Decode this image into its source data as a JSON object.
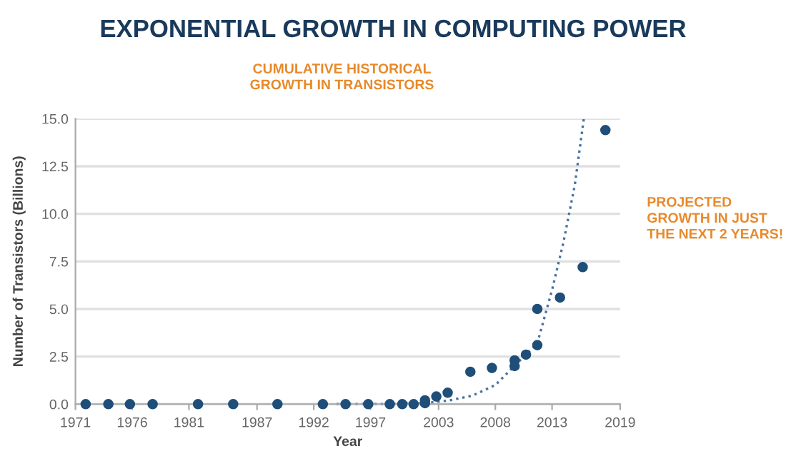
{
  "chart_data": {
    "type": "scatter",
    "title": "EXPONENTIAL GROWTH IN COMPUTING POWER",
    "xlabel": "Year",
    "ylabel": "Number of Transistors (Billions)",
    "annotations": [
      "CUMULATIVE HISTORICAL\nGROWTH IN TRANSISTORS",
      "PROJECTED\nGROWTH IN JUST\nTHE NEXT 2 YEARS!"
    ],
    "series": [
      {
        "color": "#1f4e79",
        "marker": "circle",
        "x": [
          1971.9,
          1973.9,
          1975.8,
          1977.8,
          1981.8,
          1984.9,
          1988.8,
          1992.8,
          1994.8,
          1996.8,
          1998.7,
          1999.8,
          2000.8,
          2001.8,
          2001.8,
          2002.8,
          2003.8,
          2005.8,
          2007.7,
          2009.7,
          2009.7,
          2010.7,
          2011.7,
          2011.7,
          2013.7,
          2015.7,
          2017.7
        ],
        "values": [
          0,
          0,
          0,
          0,
          0,
          0,
          0,
          0,
          0,
          0,
          0,
          0,
          0,
          0.05,
          0.2,
          0.4,
          0.6,
          1.7,
          1.9,
          2.3,
          2.0,
          2.6,
          3.1,
          5.0,
          5.6,
          7.2,
          14.4
        ]
      },
      {
        "type": "line",
        "color": "#4a72a0",
        "line_style": "dotted",
        "x": [
          1994,
          1998,
          2001.8,
          2004,
          2006,
          2008,
          2010,
          2011.7,
          2013,
          2014,
          2015,
          2015.8
        ],
        "values": [
          0,
          0,
          0.05,
          0.2,
          0.45,
          1.0,
          2.2,
          3.2,
          6.0,
          8.5,
          11.5,
          15
        ]
      }
    ],
    "xlim": [
      1971,
      2019
    ],
    "xticks": [
      1971,
      1976,
      1981,
      1987,
      1992,
      1997,
      2003,
      2008,
      2013,
      2019
    ],
    "ylim": [
      0,
      15
    ],
    "yticks": [
      {
        "value": 0,
        "label": "0.0"
      },
      {
        "value": 2.5,
        "label": "2.5"
      },
      {
        "value": 5,
        "label": "5.0"
      },
      {
        "value": 7.5,
        "label": "7.5"
      },
      {
        "value": 10,
        "label": "10.0"
      },
      {
        "value": 12.5,
        "label": "12.5"
      },
      {
        "value": 15,
        "label": "15.0"
      }
    ],
    "grid": "y",
    "legend": false
  }
}
